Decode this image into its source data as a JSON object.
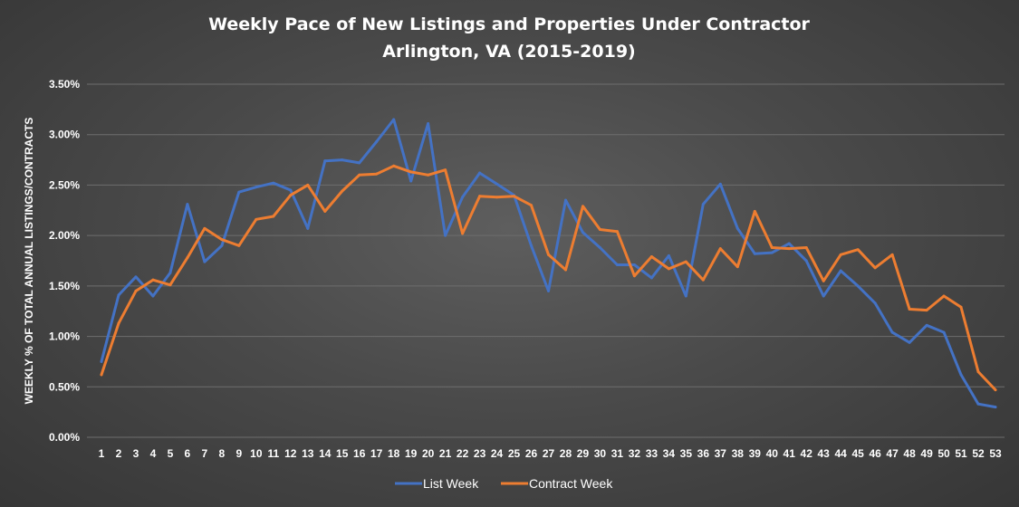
{
  "chart_data": {
    "type": "line",
    "title": "Weekly Pace of New Listings and Properties Under Contractor",
    "subtitle": "Arlington, VA (2015-2019)",
    "xlabel": "",
    "ylabel": "WEEKLY % OF TOTAL ANNUAL LISTINGS/CONTRACTS",
    "ylim": [
      0,
      3.5
    ],
    "yticks": [
      "0.00%",
      "0.50%",
      "1.00%",
      "1.50%",
      "2.00%",
      "2.50%",
      "3.00%",
      "3.50%"
    ],
    "x": [
      1,
      2,
      3,
      4,
      5,
      6,
      7,
      8,
      9,
      10,
      11,
      12,
      13,
      14,
      15,
      16,
      17,
      18,
      19,
      20,
      21,
      22,
      23,
      24,
      25,
      26,
      27,
      28,
      29,
      30,
      31,
      32,
      33,
      34,
      35,
      36,
      37,
      38,
      39,
      40,
      41,
      42,
      43,
      44,
      45,
      46,
      47,
      48,
      49,
      50,
      51,
      52,
      53
    ],
    "grid": true,
    "legend_position": "bottom",
    "series": [
      {
        "name": "List Week",
        "color": "#4472c4",
        "values": [
          0.75,
          1.41,
          1.59,
          1.4,
          1.63,
          2.31,
          1.74,
          1.9,
          2.43,
          2.48,
          2.52,
          2.45,
          2.07,
          2.74,
          2.75,
          2.72,
          2.93,
          3.15,
          2.54,
          3.11,
          2.0,
          2.38,
          2.62,
          2.51,
          2.4,
          1.9,
          1.45,
          2.35,
          2.03,
          1.88,
          1.71,
          1.71,
          1.58,
          1.8,
          1.4,
          2.31,
          2.51,
          2.07,
          1.82,
          1.83,
          1.92,
          1.75,
          1.4,
          1.65,
          1.5,
          1.33,
          1.04,
          0.94,
          1.11,
          1.04,
          0.62,
          0.33,
          0.3
        ]
      },
      {
        "name": "Contract Week",
        "color": "#ed7d31",
        "values": [
          0.62,
          1.13,
          1.45,
          1.56,
          1.51,
          1.78,
          2.07,
          1.96,
          1.9,
          2.16,
          2.19,
          2.4,
          2.5,
          2.24,
          2.44,
          2.6,
          2.61,
          2.69,
          2.63,
          2.6,
          2.65,
          2.02,
          2.39,
          2.38,
          2.39,
          2.3,
          1.81,
          1.66,
          2.29,
          2.06,
          2.04,
          1.6,
          1.79,
          1.67,
          1.74,
          1.56,
          1.87,
          1.69,
          2.24,
          1.88,
          1.87,
          1.88,
          1.55,
          1.81,
          1.86,
          1.68,
          1.81,
          1.27,
          1.26,
          1.4,
          1.29,
          0.65,
          0.47
        ]
      }
    ]
  }
}
